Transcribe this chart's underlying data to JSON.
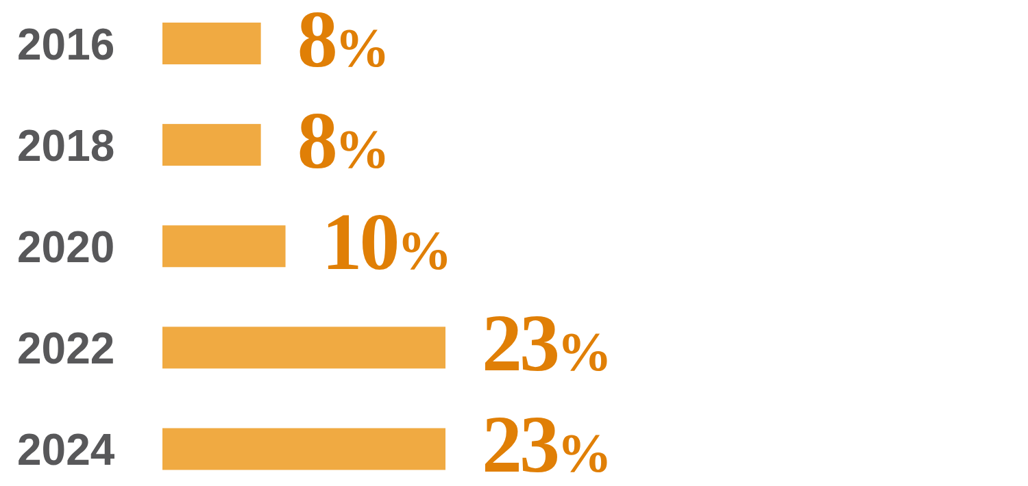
{
  "chart_data": {
    "type": "bar",
    "orientation": "horizontal",
    "categories": [
      "2016",
      "2018",
      "2020",
      "2022",
      "2024"
    ],
    "values": [
      8,
      8,
      10,
      23,
      23
    ],
    "value_labels": [
      "8%",
      "8%",
      "10%",
      "23%",
      "23%"
    ],
    "color": "#f0aa42"
  }
}
